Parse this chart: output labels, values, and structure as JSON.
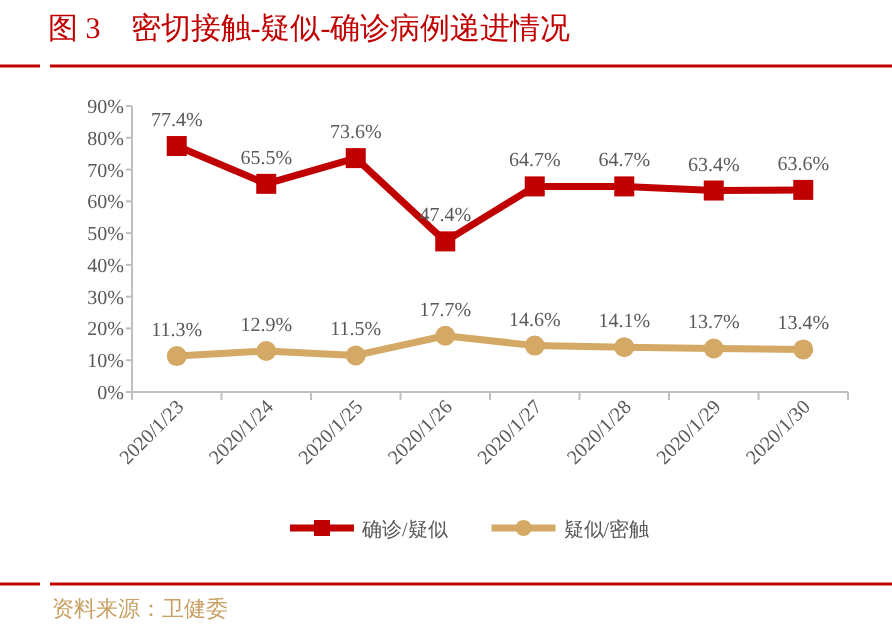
{
  "chart_data": {
    "type": "line",
    "title": "图 3　密切接触-疑似-确诊病例递进情况",
    "categories": [
      "2020/1/23",
      "2020/1/24",
      "2020/1/25",
      "2020/1/26",
      "2020/1/27",
      "2020/1/28",
      "2020/1/29",
      "2020/1/30"
    ],
    "series": [
      {
        "name": "确诊/疑似",
        "color": "#c00000",
        "marker": "square",
        "values": [
          77.4,
          65.5,
          73.6,
          47.4,
          64.7,
          64.7,
          63.4,
          63.6
        ],
        "value_labels": [
          "77.4%",
          "65.5%",
          "73.6%",
          "47.4%",
          "64.7%",
          "64.7%",
          "63.4%",
          "63.6%"
        ]
      },
      {
        "name": "疑似/密触",
        "color": "#d4a865",
        "marker": "circle",
        "values": [
          11.3,
          12.9,
          11.5,
          17.7,
          14.6,
          14.1,
          13.7,
          13.4
        ],
        "value_labels": [
          "11.3%",
          "12.9%",
          "11.5%",
          "17.7%",
          "14.6%",
          "14.1%",
          "13.7%",
          "13.4%"
        ]
      }
    ],
    "ylim": [
      0,
      90
    ],
    "yticks": [
      {
        "value": 0,
        "label": "0%"
      },
      {
        "value": 10,
        "label": "10%"
      },
      {
        "value": 20,
        "label": "20%"
      },
      {
        "value": 30,
        "label": "30%"
      },
      {
        "value": 40,
        "label": "40%"
      },
      {
        "value": 50,
        "label": "50%"
      },
      {
        "value": 60,
        "label": "60%"
      },
      {
        "value": 70,
        "label": "70%"
      },
      {
        "value": 80,
        "label": "80%"
      },
      {
        "value": 90,
        "label": "90%"
      }
    ],
    "grid": false,
    "legend": "bottom",
    "line_style": "solid",
    "annotations": [
      "资料来源：卫健委"
    ]
  }
}
